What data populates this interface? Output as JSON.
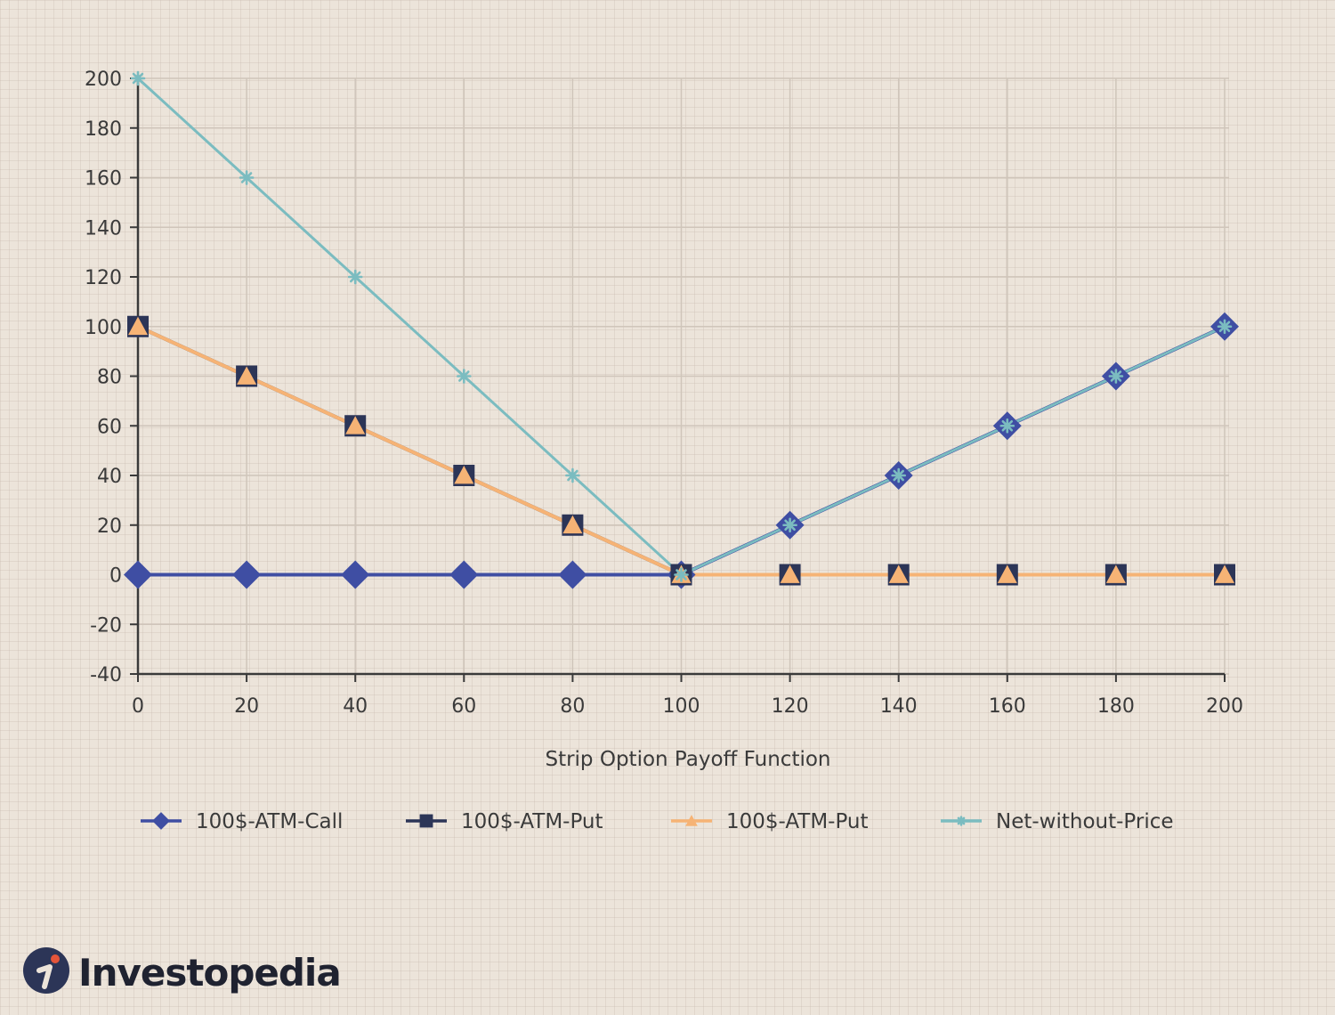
{
  "chart_data": {
    "type": "line",
    "title": "",
    "xlabel": "Strip Option Payoff Function",
    "ylabel": "",
    "xlim": [
      0,
      200
    ],
    "ylim": [
      -40,
      200
    ],
    "x_ticks": [
      0,
      20,
      40,
      60,
      80,
      100,
      120,
      140,
      160,
      180,
      200
    ],
    "y_ticks": [
      -40,
      -20,
      0,
      20,
      40,
      60,
      80,
      100,
      120,
      140,
      160,
      180,
      200
    ],
    "grid": true,
    "legend_placement": "bottom",
    "x": [
      0,
      20,
      40,
      60,
      80,
      100,
      120,
      140,
      160,
      180,
      200
    ],
    "series": [
      {
        "name": "100$-ATM-Call",
        "values": [
          0,
          0,
          0,
          0,
          0,
          0,
          20,
          40,
          60,
          80,
          100
        ],
        "color": "#3f4ea3",
        "marker": "diamond"
      },
      {
        "name": "100$-ATM-Put",
        "values": [
          100,
          80,
          60,
          40,
          20,
          0,
          0,
          0,
          0,
          0,
          0
        ],
        "color": "#2c3557",
        "marker": "square"
      },
      {
        "name": "100$-ATM-Put",
        "values": [
          100,
          80,
          60,
          40,
          20,
          0,
          0,
          0,
          0,
          0,
          0
        ],
        "color": "#f6b375",
        "marker": "triangle"
      },
      {
        "name": "Net-without-Price",
        "values": [
          200,
          160,
          120,
          80,
          40,
          0,
          20,
          40,
          60,
          80,
          100
        ],
        "color": "#7bbcc0",
        "marker": "asterisk"
      }
    ]
  },
  "brand": {
    "name": "Investopedia",
    "logo_color": "#2c3557",
    "logo_dot_color": "#e4553a"
  }
}
